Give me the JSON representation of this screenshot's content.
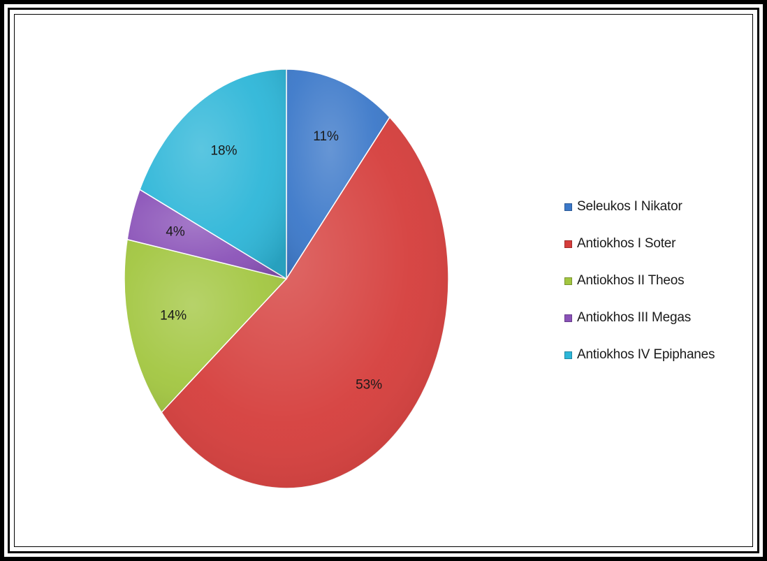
{
  "chart_data": {
    "type": "pie",
    "title": "",
    "legend_position": "right",
    "slices": [
      {
        "name": "Seleukos I Nikator",
        "value": 11,
        "label": "11%",
        "color": "#3b78c9"
      },
      {
        "name": "Antiokhos I Soter",
        "value": 53,
        "label": "53%",
        "color": "#d53d3b"
      },
      {
        "name": "Antiokhos II Theos",
        "value": 14,
        "label": "14%",
        "color": "#a2c640"
      },
      {
        "name": "Antiokhos III Megas",
        "value": 4,
        "label": "4%",
        "color": "#8a52b8"
      },
      {
        "name": "Antiokhos IV Epiphanes",
        "value": 18,
        "label": "18%",
        "color": "#2db6d8"
      }
    ]
  }
}
